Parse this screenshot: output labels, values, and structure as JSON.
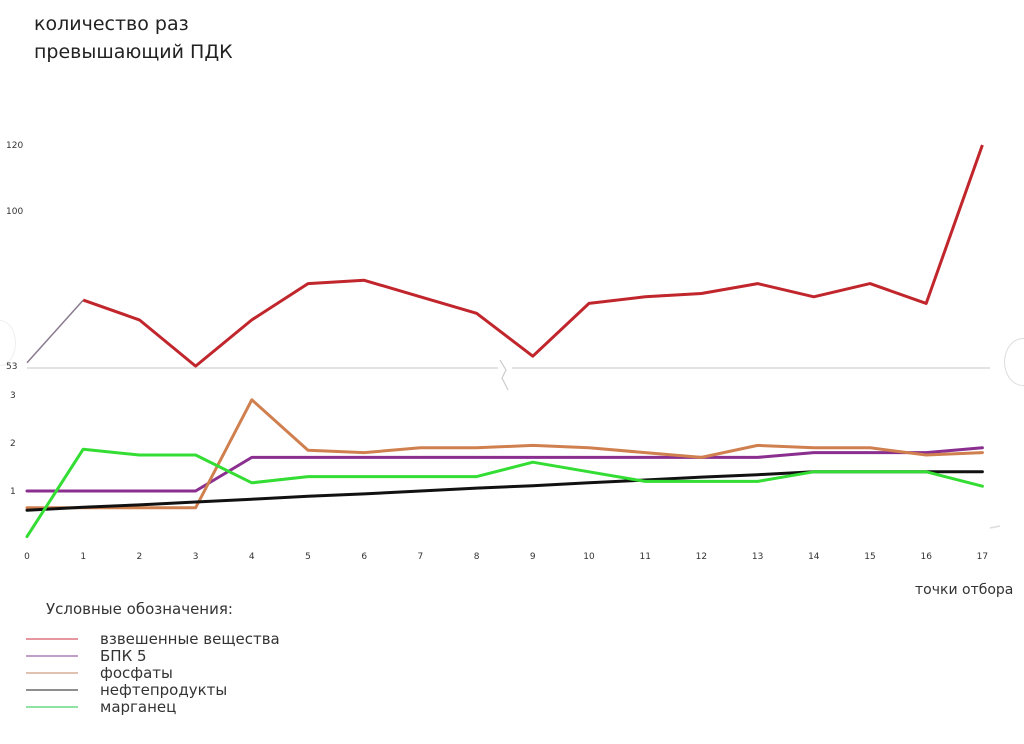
{
  "chart_data": [
    {
      "type": "line",
      "title": "количество раз превышающий ПДК",
      "title_lines": [
        "количество раз",
        "превышающий ПДК"
      ],
      "xlabel": "точки отбора",
      "ylabel": "",
      "x": [
        0,
        1,
        2,
        3,
        4,
        5,
        6,
        7,
        8,
        9,
        10,
        11,
        12,
        13,
        14,
        15,
        16,
        17
      ],
      "ylim": [
        53,
        120
      ],
      "y_ticks": [
        "120",
        "100",
        "53"
      ],
      "y_tick_values": [
        120,
        100,
        53
      ],
      "axis_break": true,
      "series": [
        {
          "name": "взвешенные вещества",
          "color": "#c0262c",
          "values": [
            54,
            73,
            67,
            53,
            67,
            78,
            79,
            74,
            69,
            56,
            72,
            74,
            75,
            78,
            74,
            78,
            72,
            120
          ]
        }
      ]
    },
    {
      "type": "line",
      "x": [
        0,
        1,
        2,
        3,
        4,
        5,
        6,
        7,
        8,
        9,
        10,
        11,
        12,
        13,
        14,
        15,
        16,
        17
      ],
      "x_ticks": [
        "0",
        "1",
        "2",
        "3",
        "4",
        "5",
        "6",
        "7",
        "8",
        "9",
        "10",
        "11",
        "12",
        "13",
        "14",
        "15",
        "16",
        "17"
      ],
      "ylim": [
        0,
        3
      ],
      "y_ticks": [
        "3",
        "2",
        "1"
      ],
      "y_tick_values": [
        3,
        2,
        1
      ],
      "series": [
        {
          "name": "БПК 5",
          "color": "#8a2f8f",
          "values": [
            1.0,
            1.0,
            1.0,
            1.0,
            1.7,
            1.7,
            1.7,
            1.7,
            1.7,
            1.7,
            1.7,
            1.7,
            1.7,
            1.7,
            1.8,
            1.8,
            1.8,
            1.9
          ]
        },
        {
          "name": "фосфаты",
          "color": "#d0804f",
          "values": [
            0.65,
            0.65,
            0.65,
            0.65,
            2.9,
            1.85,
            1.8,
            1.9,
            1.9,
            1.95,
            1.9,
            1.8,
            1.7,
            1.95,
            1.9,
            1.9,
            1.75,
            1.8
          ]
        },
        {
          "name": "нефтепродукты",
          "color": "#111111",
          "values": [
            0.6,
            0.66,
            0.71,
            0.77,
            0.83,
            0.89,
            0.94,
            1.0,
            1.06,
            1.11,
            1.17,
            1.23,
            1.29,
            1.34,
            1.4,
            1.4,
            1.4,
            1.4
          ]
        },
        {
          "name": "марганец",
          "color": "#33dd33",
          "values": [
            0.05,
            1.87,
            1.75,
            1.75,
            1.17,
            1.3,
            1.3,
            1.3,
            1.3,
            1.6,
            1.4,
            1.2,
            1.2,
            1.2,
            1.4,
            1.4,
            1.4,
            1.1
          ]
        }
      ]
    }
  ],
  "legend": {
    "title": "Условные обозначения:",
    "items": [
      {
        "label": "взвешенные вещества",
        "color": "#d04050"
      },
      {
        "label": "БПК 5",
        "color": "#8a4f9f"
      },
      {
        "label": "фосфаты",
        "color": "#c89070"
      },
      {
        "label": "нефтепродукты",
        "color": "#333333"
      },
      {
        "label": "марганец",
        "color": "#33cc55"
      }
    ]
  }
}
